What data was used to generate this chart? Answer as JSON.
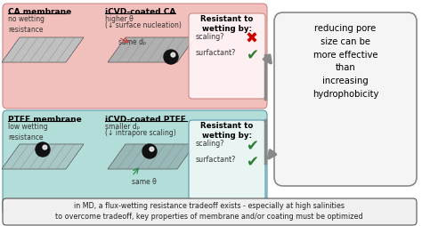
{
  "bg_color": "#ffffff",
  "top_panel_color": "#f2c0bc",
  "bottom_panel_color": "#b2ddd8",
  "ca_title": "CA membrane",
  "ca_sub": "no wetting\nresistance",
  "icvd_ca_title": "iCVD-coated CA",
  "icvd_ca_sub1": "higher θ",
  "icvd_ca_sub2": "(↓ surface nucleation)",
  "icvd_ca_sub3": "same dₚ",
  "ptfe_title": "PTFE membrane",
  "ptfe_sub": "low wetting\nresistance",
  "icvd_ptfe_title": "iCVD-coated PTFE",
  "icvd_ptfe_sub1": "smaller dₚ",
  "icvd_ptfe_sub2": "(↓ intrapore scaling)",
  "icvd_ptfe_sub3": "same θ",
  "resist_top_title": "Resistant to\nwetting by:",
  "resist_top_scale": "scaling?",
  "resist_top_surf": "surfactant?",
  "resist_bot_title": "Resistant to\nwetting by:",
  "resist_bot_scale": "scaling?",
  "resist_bot_surf": "surfactant?",
  "right_box_text": "reducing pore\nsize can be\nmore effective\nthan\nincreasing\nhydrophobicity",
  "bottom_text": "in MD, a flux-wetting resistance tradeoff exists - especially at high salinities\nto overcome tradeoff, key properties of membrane and/or coating must be optimized",
  "cross_color": "#cc0000",
  "check_color": "#2e7d32",
  "arrow_color": "#888888",
  "top_panel_ec": "#cc8888",
  "bot_panel_ec": "#5599aa"
}
